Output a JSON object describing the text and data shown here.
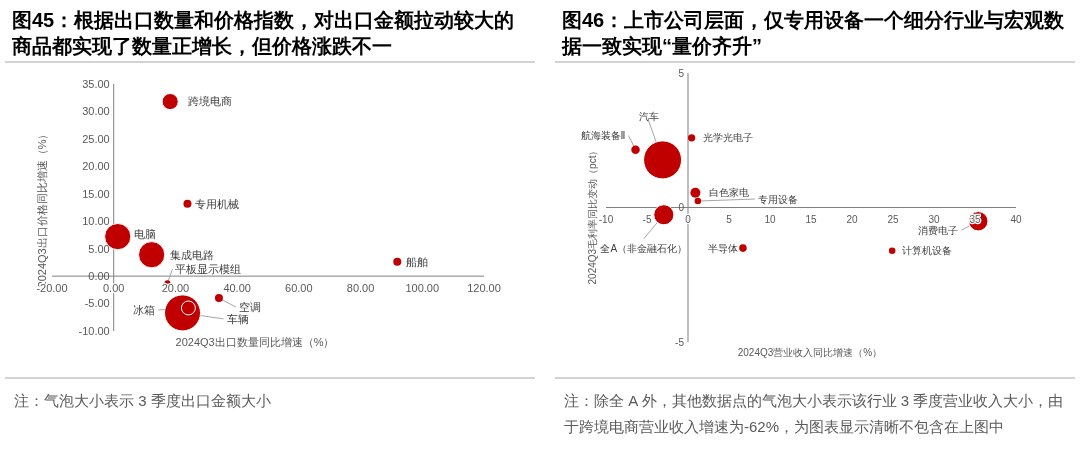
{
  "chart_data": [
    {
      "type": "bubble",
      "title": "图45：根据出口数量和价格指数，对出口金额拉动较大的商品都实现了数量正增长，但价格涨跌不一",
      "xlabel": "2024Q3出口数量同比增速（%）",
      "ylabel": "2024Q3出口价格同比增速（%）",
      "annotations": [
        "注：气泡大小表示 3 季度出口金额大小"
      ],
      "xlim": [
        -20,
        120
      ],
      "ylim": [
        -10,
        35
      ],
      "xticks": [
        {
          "value": -20,
          "label": "-20.00"
        },
        {
          "value": 0,
          "label": "0.00"
        },
        {
          "value": 20,
          "label": "20.00"
        },
        {
          "value": 40,
          "label": "40.00"
        },
        {
          "value": 60,
          "label": "60.00"
        },
        {
          "value": 80,
          "label": "80.00"
        },
        {
          "value": 100,
          "label": "100.00"
        },
        {
          "value": 120,
          "label": "120.00"
        }
      ],
      "yticks": [
        {
          "value": -10,
          "label": "-10.00"
        },
        {
          "value": -5,
          "label": "-5.00"
        },
        {
          "value": 0,
          "label": "0.00"
        },
        {
          "value": 5,
          "label": "5.00"
        },
        {
          "value": 10,
          "label": "10.00"
        },
        {
          "value": 15,
          "label": "15.00"
        },
        {
          "value": 20,
          "label": "20.00"
        },
        {
          "value": 25,
          "label": "25.00"
        },
        {
          "value": 30,
          "label": "30.00"
        },
        {
          "value": 35,
          "label": "35.00"
        }
      ],
      "series": [
        {
          "name": "跨境电商",
          "color": "#c00000",
          "x": [
            18.3
          ],
          "values": [
            31.8
          ],
          "sizes": [
            0.2
          ]
        },
        {
          "name": "专用机械",
          "color": "#c00000",
          "x": [
            23.9
          ],
          "values": [
            13.2
          ],
          "sizes": [
            0.05
          ]
        },
        {
          "name": "电脑",
          "color": "#c00000",
          "x": [
            1.3
          ],
          "values": [
            7.2
          ],
          "sizes": [
            0.53
          ]
        },
        {
          "name": "集成电路",
          "color": "#c00000",
          "x": [
            12.3
          ],
          "values": [
            3.9
          ],
          "sizes": [
            0.53
          ]
        },
        {
          "name": "船舶",
          "color": "#c00000",
          "x": [
            91.9
          ],
          "values": [
            2.6
          ],
          "sizes": [
            0.05
          ]
        },
        {
          "name": "平板显示模组",
          "color": "#c00000",
          "x": [
            17.4
          ],
          "values": [
            -1.3
          ],
          "sizes": [
            0.03
          ]
        },
        {
          "name": "空调",
          "color": "#c00000",
          "x": [
            34.1
          ],
          "values": [
            -4.0
          ],
          "sizes": [
            0.05
          ]
        },
        {
          "name": "车辆",
          "color": "#c00000",
          "x": [
            22.3
          ],
          "values": [
            -6.7
          ],
          "sizes": [
            1
          ]
        },
        {
          "name": "冰箱",
          "color": "#c00000",
          "x": [
            24.2
          ],
          "values": [
            -5.8
          ],
          "sizes": [
            0.15
          ]
        }
      ]
    },
    {
      "type": "bubble",
      "title": "图46：上市公司层面，仅专用设备一个细分行业与宏观数据一致实现“量价齐升”",
      "xlabel": "2024Q3营业收入同比增速（%）",
      "ylabel": "2024Q3毛利率同比变动（pct）",
      "annotations": [
        "注：除全 A 外，其他数据点的气泡大小表示该行业 3 季度营业收入大小，由于跨境电商营业收入增速为-62%，为图表显示清晰不包含在上图中"
      ],
      "xlim": [
        -10,
        40
      ],
      "ylim": [
        -5,
        5
      ],
      "xticks": [
        -10,
        -5,
        0,
        5,
        10,
        15,
        20,
        25,
        30,
        35,
        40
      ],
      "yticks": [
        -5,
        0,
        5
      ],
      "series": [
        {
          "name": "汽车",
          "color": "#c00000",
          "x": [
            -3.1
          ],
          "values": [
            1.77
          ],
          "sizes": [
            1
          ]
        },
        {
          "name": "航海装备Ⅱ",
          "color": "#c00000",
          "x": [
            -6.4
          ],
          "values": [
            2.15
          ],
          "sizes": [
            0.05
          ]
        },
        {
          "name": "光学光电子",
          "color": "#c00000",
          "x": [
            0.44
          ],
          "values": [
            2.59
          ],
          "sizes": [
            0.037
          ]
        },
        {
          "name": "白色家电",
          "color": "#c00000",
          "x": [
            0.9
          ],
          "values": [
            0.55
          ],
          "sizes": [
            0.07
          ]
        },
        {
          "name": "专用设备",
          "color": "#c00000",
          "x": [
            1.2
          ],
          "values": [
            0.24
          ],
          "sizes": [
            0.03
          ]
        },
        {
          "name": "全A（非金融石化）",
          "color": "#c00000",
          "x": [
            -2.95
          ],
          "values": [
            -0.27
          ],
          "sizes": [
            0.28
          ]
        },
        {
          "name": "消费电子",
          "color": "#c00000",
          "x": [
            35.4
          ],
          "values": [
            -0.51
          ],
          "sizes": [
            0.26
          ]
        },
        {
          "name": "半导体",
          "color": "#c00000",
          "x": [
            6.7
          ],
          "values": [
            -1.51
          ],
          "sizes": [
            0.04
          ]
        },
        {
          "name": "计算机设备",
          "color": "#c00000",
          "x": [
            24.9
          ],
          "values": [
            -1.61
          ],
          "sizes": [
            0.03
          ]
        }
      ]
    }
  ]
}
